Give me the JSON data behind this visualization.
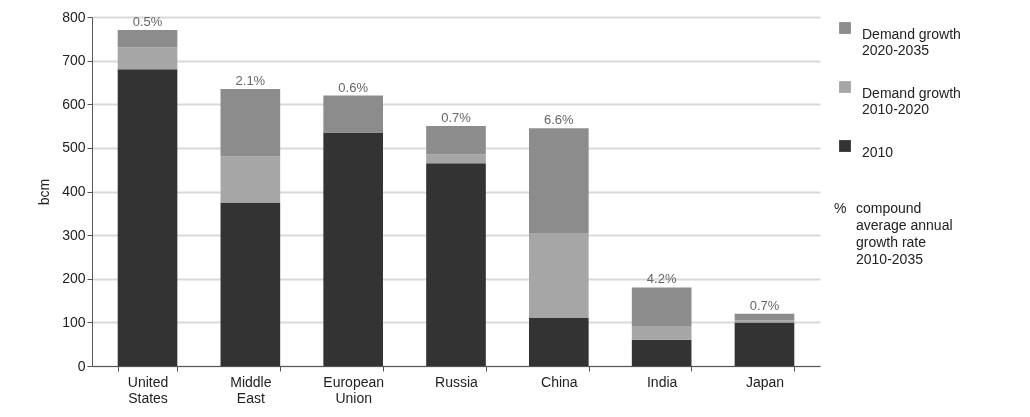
{
  "chart_data": {
    "type": "bar",
    "stacked": true,
    "ylabel": "bcm",
    "categories": [
      "United States",
      "Middle East",
      "European Union",
      "Russia",
      "China",
      "India",
      "Japan"
    ],
    "series": [
      {
        "name": "2010",
        "color": "#333333",
        "values": [
          680,
          375,
          535,
          465,
          110,
          60,
          100
        ]
      },
      {
        "name": "Demand growth 2010-2020",
        "color": "#a6a6a6",
        "values": [
          50,
          105,
          0,
          20,
          195,
          30,
          5
        ]
      },
      {
        "name": "Demand growth 2020-2035",
        "color": "#8c8c8c",
        "values": [
          40,
          155,
          85,
          65,
          240,
          90,
          15
        ]
      }
    ],
    "annotations": [
      {
        "text": "0.5%",
        "x": "United States",
        "y": 770
      },
      {
        "text": "2.1%",
        "x": "Middle East",
        "y": 635
      },
      {
        "text": "0.6%",
        "x": "European Union",
        "y": 620
      },
      {
        "text": "0.7%",
        "x": "Russia",
        "y": 550
      },
      {
        "text": "6.6%",
        "x": "China",
        "y": 545
      },
      {
        "text": "4.2%",
        "x": "India",
        "y": 180
      },
      {
        "text": "0.7%",
        "x": "Japan",
        "y": 120
      },
      "%",
      "compound average annual growth rate 2010-2035"
    ],
    "ylim": [
      0,
      800
    ],
    "yticks": [
      0,
      100,
      200,
      300,
      400,
      500,
      600,
      700,
      800
    ],
    "grid": "y",
    "legend": "right"
  }
}
